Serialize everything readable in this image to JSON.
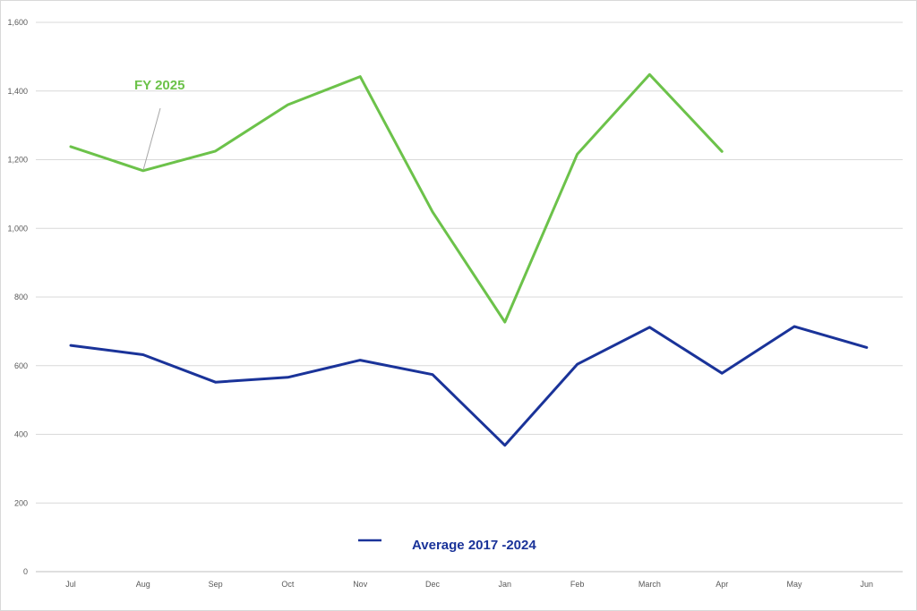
{
  "chart_data": {
    "type": "line",
    "categories": [
      "Jul",
      "Aug",
      "Sep",
      "Oct",
      "Nov",
      "Dec",
      "Jan",
      "Feb",
      "March",
      "Apr",
      "May",
      "Jun"
    ],
    "ylim": [
      0,
      1600
    ],
    "yticks": [
      "0",
      "200",
      "400",
      "600",
      "800",
      "1,000",
      "1,200",
      "1,400",
      "1,600"
    ],
    "ytick_values": [
      0,
      200,
      400,
      600,
      800,
      1000,
      1200,
      1400,
      1600
    ],
    "grid": true,
    "series": [
      {
        "name": "FY 2025",
        "color": "#6cc24a",
        "values": [
          1238,
          1168,
          1225,
          1360,
          1442,
          1048,
          727,
          1216,
          1448,
          1224,
          null,
          null
        ]
      },
      {
        "name": "Average 2017 -2024",
        "color": "#1a3399",
        "values": [
          659,
          632,
          552,
          566,
          616,
          574,
          368,
          604,
          712,
          578,
          714,
          653
        ]
      }
    ],
    "annotations": {
      "fy": "FY 2025",
      "avg": "Average 2017 -2024"
    }
  }
}
